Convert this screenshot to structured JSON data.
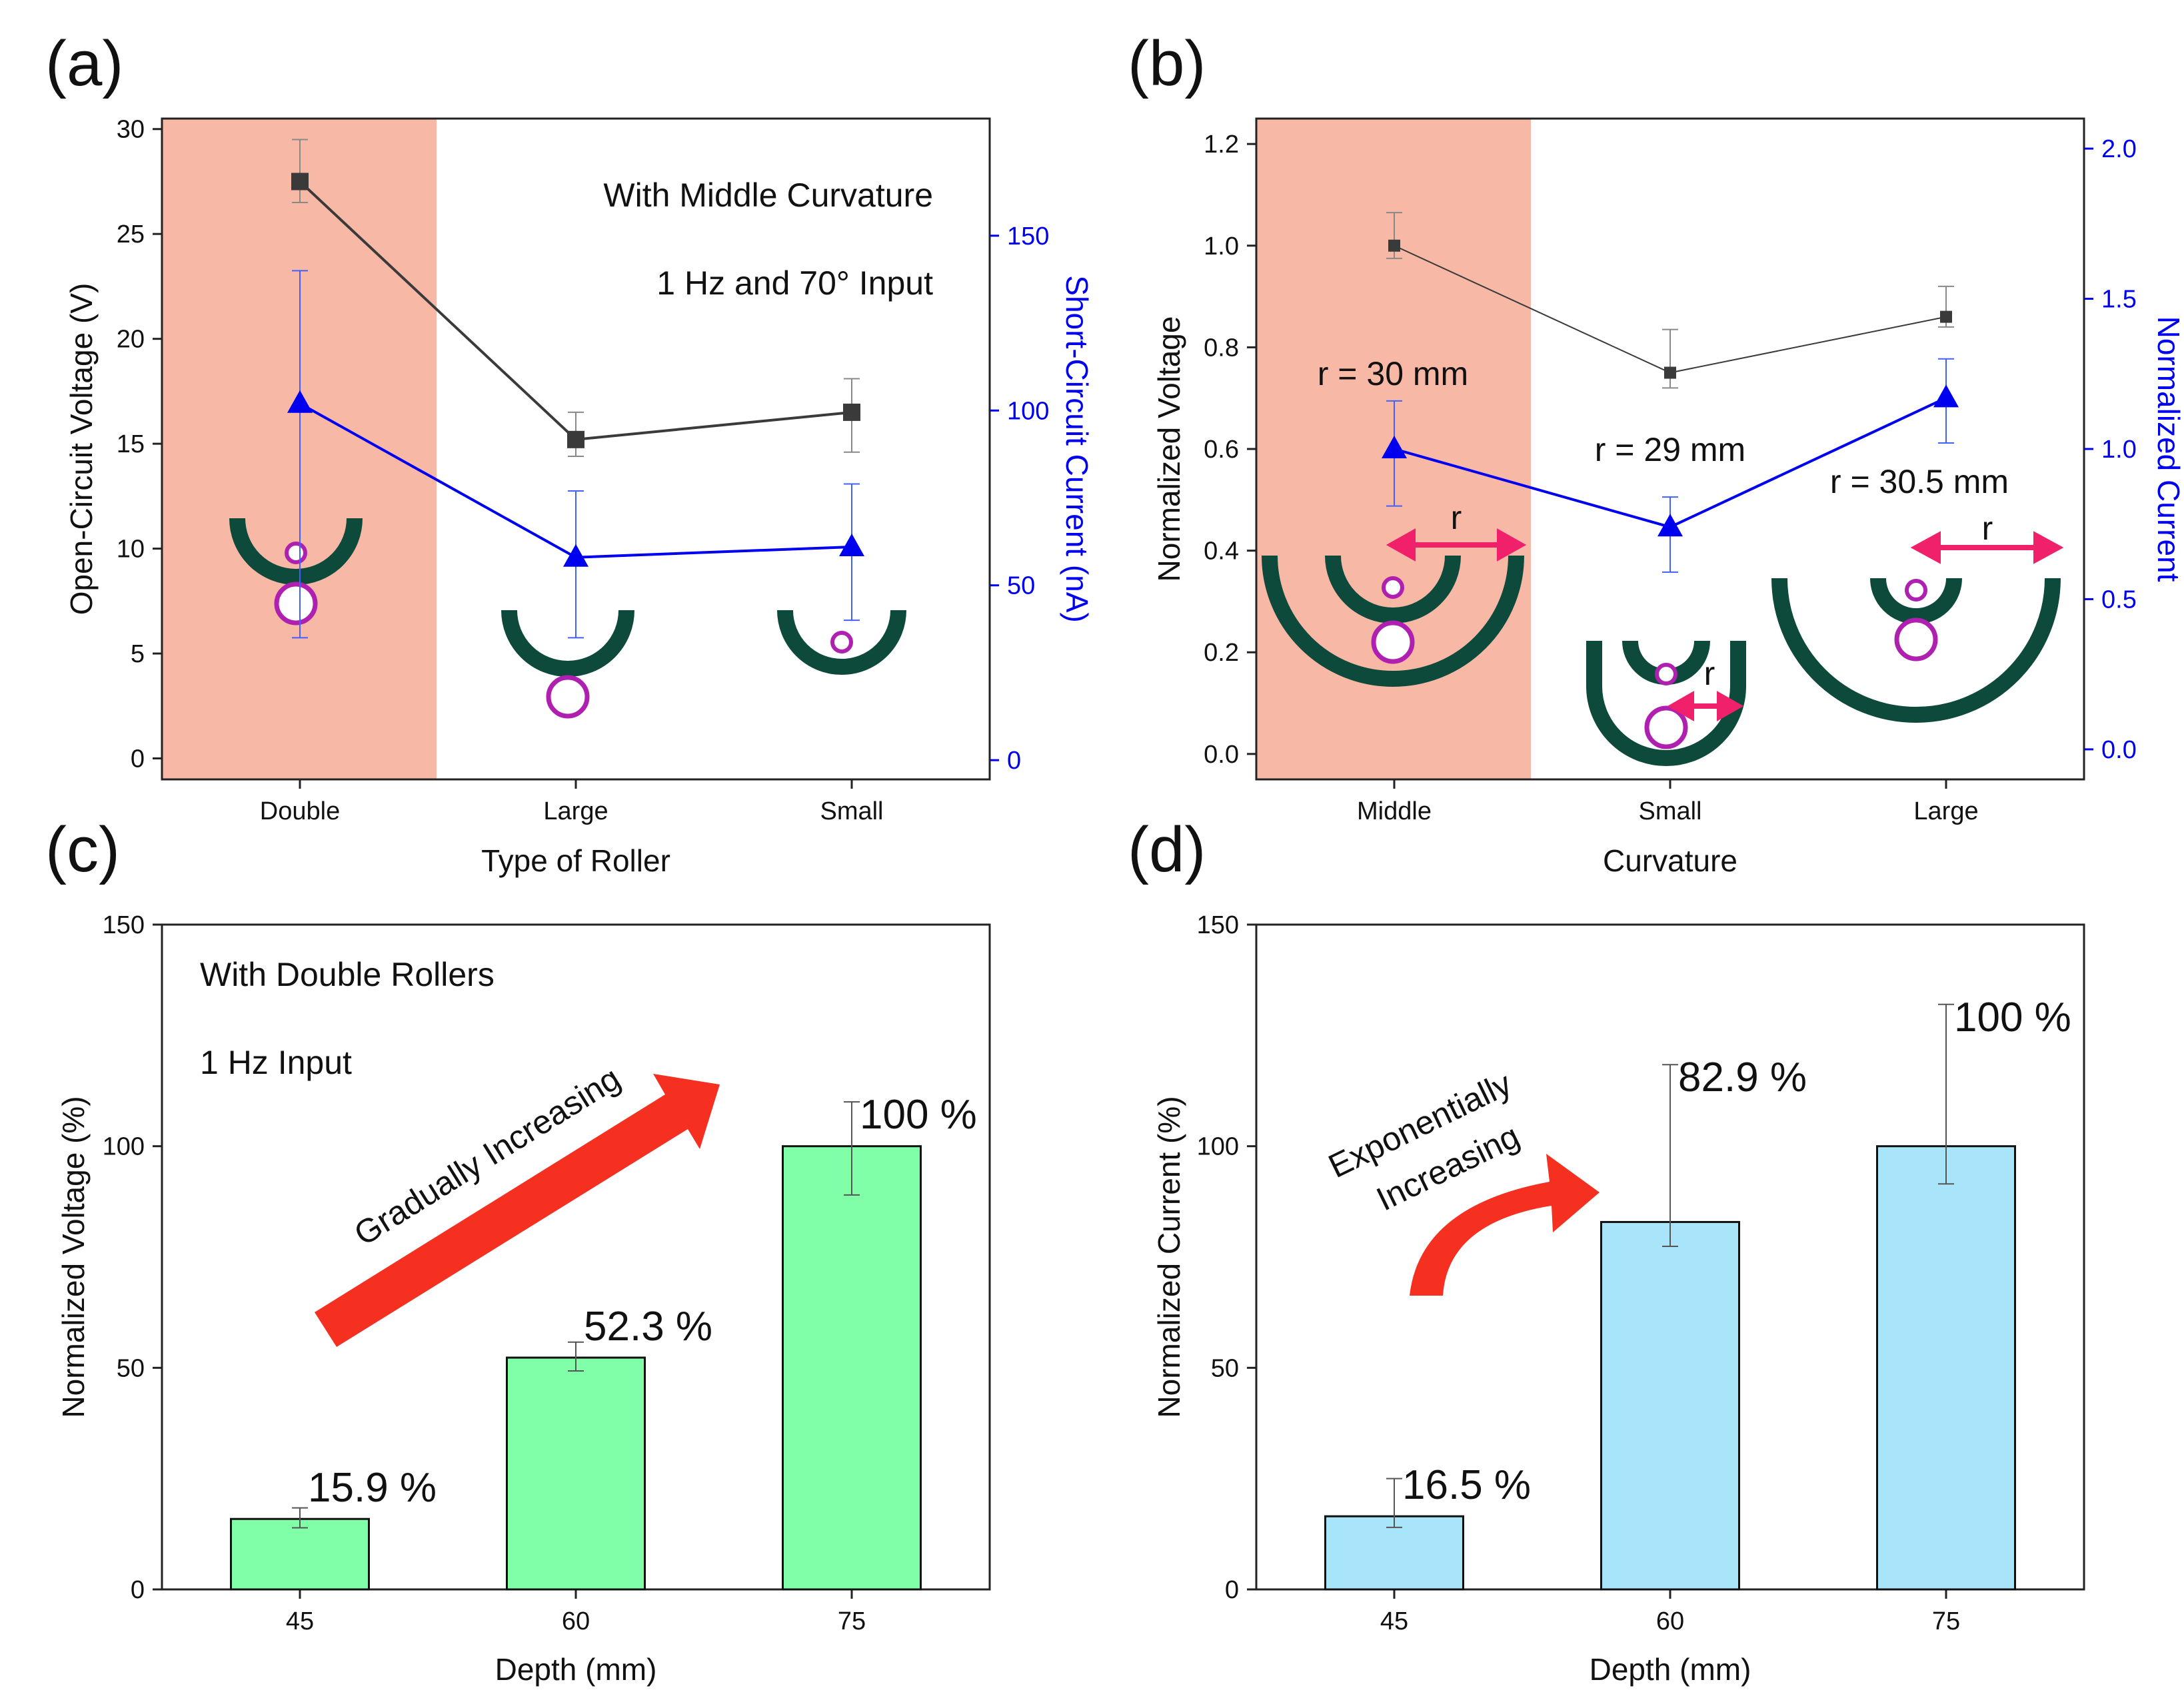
{
  "panels": {
    "a": {
      "letter": "(a)"
    },
    "b": {
      "letter": "(b)"
    },
    "c": {
      "letter": "(c)"
    },
    "d": {
      "letter": "(d)"
    }
  },
  "annotations": {
    "a_line1": "With Middle Curvature",
    "a_line2": "1 Hz and 70° Input",
    "b_r_middle": "r = 30 mm",
    "b_r_small": "r = 29 mm",
    "b_r_large": "r = 30.5 mm",
    "b_r_symbol": "r",
    "c_line1": "With Double Rollers",
    "c_line2": "1 Hz Input",
    "c_arrow": "Gradually Increasing",
    "d_arrow_line1": "Exponentially",
    "d_arrow_line2": "Increasing"
  },
  "colors": {
    "voltage": "#3A3A3A",
    "current": "#0000F0",
    "shade": "#F8B8A6",
    "bar_voltage": "#80FFA8",
    "bar_current": "#A8E4FA",
    "arrow": "#F53020",
    "roller": "#0E4A3C",
    "ball": "#B020B0",
    "dim_arrow": "#F0206A"
  },
  "chart_data": [
    {
      "panel": "a",
      "type": "line",
      "categories": [
        "Double",
        "Large",
        "Small"
      ],
      "xlabel": "Type of Roller",
      "ylabel": "Open-Circuit Voltage (V)",
      "ylabel_right": "Short-Circuit Current (nA)",
      "ylim": [
        -1,
        30.5
      ],
      "yticks": [
        0,
        5,
        10,
        15,
        20,
        25,
        30
      ],
      "ylim_right": [
        -5.5,
        183.5
      ],
      "yticks_right": [
        0,
        50,
        100,
        150
      ],
      "shaded_categories": [
        "Double"
      ],
      "series": [
        {
          "name": "Open-Circuit Voltage",
          "axis": "left",
          "marker": "square",
          "color": "#3A3A3A",
          "values": [
            27.5,
            15.2,
            16.5
          ],
          "err_low": [
            1.0,
            0.8,
            1.9
          ],
          "err_high": [
            2.0,
            1.3,
            1.6
          ]
        },
        {
          "name": "Short-Circuit Current",
          "axis": "right",
          "marker": "triangle",
          "color": "#0000F0",
          "values": [
            102,
            58,
            61
          ],
          "err_low": [
            67,
            23,
            21
          ],
          "err_high": [
            38,
            19,
            18
          ]
        }
      ]
    },
    {
      "panel": "b",
      "type": "line",
      "categories": [
        "Middle",
        "Small",
        "Large"
      ],
      "xlabel": "Curvature",
      "ylabel": "Normalized Voltage",
      "ylabel_right": "Normalized Current",
      "ylim": [
        -0.05,
        1.25
      ],
      "yticks": [
        0.0,
        0.2,
        0.4,
        0.6,
        0.8,
        1.0,
        1.2
      ],
      "ylim_right": [
        -0.1,
        2.1
      ],
      "yticks_right": [
        0.0,
        0.5,
        1.0,
        1.5,
        2.0
      ],
      "shaded_categories": [
        "Middle"
      ],
      "series": [
        {
          "name": "Normalized Voltage",
          "axis": "left",
          "marker": "square",
          "color": "#3A3A3A",
          "values": [
            1.0,
            0.75,
            0.86
          ],
          "err_low": [
            0.025,
            0.03,
            0.02
          ],
          "err_high": [
            0.065,
            0.085,
            0.06
          ]
        },
        {
          "name": "Normalized Current",
          "axis": "right",
          "marker": "triangle",
          "color": "#0000F0",
          "values": [
            1.0,
            0.74,
            1.17
          ],
          "err_low": [
            0.19,
            0.15,
            0.15
          ],
          "err_high": [
            0.16,
            0.1,
            0.13
          ]
        }
      ]
    },
    {
      "panel": "c",
      "type": "bar",
      "categories": [
        "45",
        "60",
        "75"
      ],
      "values": [
        15.9,
        52.3,
        100
      ],
      "value_labels": [
        "15.9 %",
        "52.3 %",
        "100 %"
      ],
      "err_low": [
        2.0,
        3.0,
        11.0
      ],
      "err_high": [
        2.5,
        3.5,
        10.0
      ],
      "xlabel": "Depth (mm)",
      "ylabel": "Normalized Voltage (%)",
      "ylim": [
        0,
        150
      ],
      "yticks": [
        0,
        50,
        100,
        150
      ],
      "color": "#80FFA8"
    },
    {
      "panel": "d",
      "type": "bar",
      "categories": [
        "45",
        "60",
        "75"
      ],
      "values": [
        16.5,
        82.9,
        100
      ],
      "value_labels": [
        "16.5 %",
        "82.9 %",
        "100 %"
      ],
      "err_low": [
        2.5,
        5.5,
        8.5
      ],
      "err_high": [
        8.5,
        35.5,
        32.0
      ],
      "xlabel": "Depth (mm)",
      "ylabel": "Normalized Current (%)",
      "ylim": [
        0,
        150
      ],
      "yticks": [
        0,
        50,
        100,
        150
      ],
      "color": "#A8E4FA"
    }
  ]
}
